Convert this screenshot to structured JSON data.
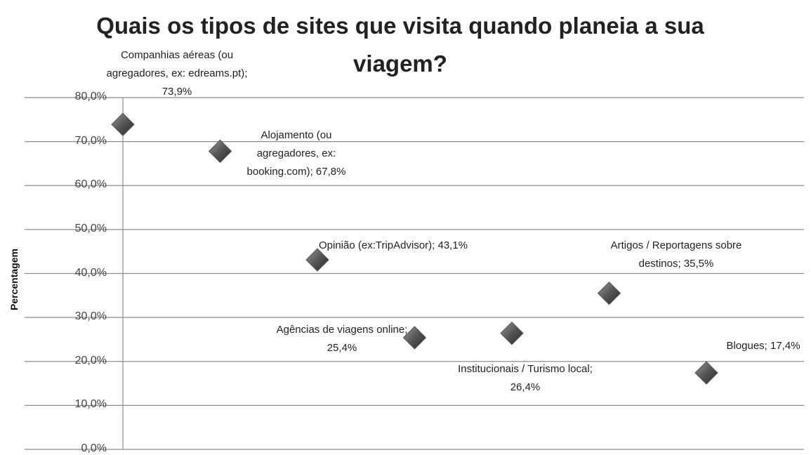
{
  "chart_data": {
    "type": "line",
    "title": "Quais os tipos de sites que visita quando planeia a sua viagem?",
    "y_label": "Percentagem",
    "values": [
      73.9,
      67.8,
      43.1,
      25.4,
      26.4,
      35.5,
      17.4
    ],
    "value_labels": [
      "Companhias aéreas (ou agregadores, ex: edreams.pt); 73,9%",
      "Alojamento (ou agregadores, ex: booking.com); 67,8%",
      "Opinião (ex:TripAdvisor); 43,1%",
      "Agências de viagens online; 25,4%",
      "Institucionais / Turismo local; 26,4%",
      "Artigos / Reportagens sobre destinos; 35,5%",
      "Blogues; 17,4%"
    ],
    "color": "#555555",
    "ylim": [
      0,
      80
    ],
    "yticks": [
      {
        "value": 0,
        "label": "0,0%"
      },
      {
        "value": 10,
        "label": "10,0%"
      },
      {
        "value": 20,
        "label": "20,0%"
      },
      {
        "value": 30,
        "label": "30,0%"
      },
      {
        "value": 40,
        "label": "40,0%"
      },
      {
        "value": 50,
        "label": "50,0%"
      },
      {
        "value": 60,
        "label": "60,0%"
      },
      {
        "value": 70,
        "label": "70,0%"
      },
      {
        "value": 80,
        "label": "80,0%"
      }
    ],
    "grid": true
  }
}
